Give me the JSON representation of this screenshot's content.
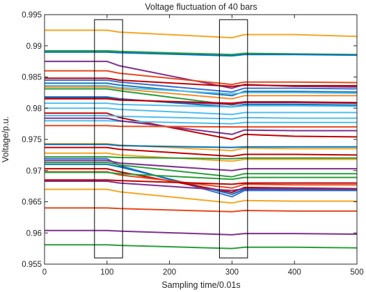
{
  "chart_data": {
    "type": "line",
    "title": "Voltage fluctuation of 40 bars",
    "xlabel": "Sampling time/0.01s",
    "ylabel": "Voltage/p.u.",
    "xlim": [
      0,
      500
    ],
    "ylim": [
      0.955,
      0.995
    ],
    "x_ticks": [
      0,
      100,
      200,
      300,
      400,
      500
    ],
    "x_tick_labels": [
      "0",
      "100",
      "200",
      "300",
      "400",
      "500"
    ],
    "y_ticks": [
      0.955,
      0.96,
      0.965,
      0.97,
      0.975,
      0.98,
      0.985,
      0.99,
      0.995
    ],
    "y_tick_labels": [
      "0.955",
      "0.96",
      "0.965",
      "0.97",
      "0.975",
      "0.98",
      "0.985",
      "0.99",
      "0.995"
    ],
    "grid": false,
    "legend": "none",
    "x": [
      0,
      100,
      120,
      300,
      320,
      400,
      500
    ],
    "series": [
      {
        "color": "#f5a623",
        "values": [
          0.9925,
          0.9925,
          0.9922,
          0.9913,
          0.9918,
          0.9918,
          0.9915
        ]
      },
      {
        "color": "#2a9d3a",
        "values": [
          0.9892,
          0.9892,
          0.9891,
          0.9886,
          0.9888,
          0.9887,
          0.9886
        ]
      },
      {
        "color": "#0072bd",
        "values": [
          0.989,
          0.989,
          0.9889,
          0.9884,
          0.9886,
          0.9886,
          0.9885
        ]
      },
      {
        "color": "#7e2f8e",
        "values": [
          0.9875,
          0.9875,
          0.9868,
          0.9832,
          0.9838,
          0.9835,
          0.9834
        ]
      },
      {
        "color": "#e8481c",
        "values": [
          0.986,
          0.986,
          0.9856,
          0.9838,
          0.9842,
          0.9842,
          0.9841
        ]
      },
      {
        "color": "#c00000",
        "values": [
          0.9848,
          0.9848,
          0.9845,
          0.9835,
          0.9837,
          0.9836,
          0.9836
        ]
      },
      {
        "color": "#3b6fd6",
        "values": [
          0.9845,
          0.9845,
          0.9842,
          0.9826,
          0.9832,
          0.9832,
          0.9831
        ]
      },
      {
        "color": "#1f77b4",
        "values": [
          0.984,
          0.984,
          0.9837,
          0.982,
          0.9827,
          0.9827,
          0.9826
        ]
      },
      {
        "color": "#4dbeee",
        "values": [
          0.9836,
          0.9836,
          0.9833,
          0.9823,
          0.9825,
          0.9825,
          0.9824
        ]
      },
      {
        "color": "#f28e2b",
        "values": [
          0.9834,
          0.9834,
          0.9831,
          0.9815,
          0.982,
          0.982,
          0.982
        ]
      },
      {
        "color": "#2a9d3a",
        "values": [
          0.9831,
          0.9831,
          0.9828,
          0.9805,
          0.981,
          0.981,
          0.9808
        ]
      },
      {
        "color": "#0072bd",
        "values": [
          0.9818,
          0.9818,
          0.9815,
          0.9802,
          0.9806,
          0.9806,
          0.9805
        ]
      },
      {
        "color": "#7e2f8e",
        "values": [
          0.9816,
          0.9816,
          0.9814,
          0.9806,
          0.9809,
          0.9809,
          0.9808
        ]
      },
      {
        "color": "#c00000",
        "values": [
          0.9815,
          0.9815,
          0.9813,
          0.9808,
          0.981,
          0.981,
          0.9809
        ]
      },
      {
        "color": "#4dbeee",
        "values": [
          0.9808,
          0.9808,
          0.9806,
          0.9802,
          0.9804,
          0.9804,
          0.9803
        ]
      },
      {
        "color": "#4dbeee",
        "values": [
          0.98,
          0.98,
          0.9798,
          0.979,
          0.9793,
          0.9793,
          0.9793
        ]
      },
      {
        "color": "#c00000",
        "values": [
          0.9792,
          0.9792,
          0.9785,
          0.975,
          0.9758,
          0.9755,
          0.9754
        ]
      },
      {
        "color": "#4dbeee",
        "values": [
          0.9788,
          0.9788,
          0.9787,
          0.9783,
          0.9785,
          0.9784,
          0.9784
        ]
      },
      {
        "color": "#4dbeee",
        "values": [
          0.978,
          0.978,
          0.9779,
          0.9775,
          0.9777,
          0.9777,
          0.9777
        ]
      },
      {
        "color": "#7e2f8e",
        "values": [
          0.9784,
          0.9784,
          0.978,
          0.9758,
          0.9765,
          0.9764,
          0.9764
        ]
      },
      {
        "color": "#e8481c",
        "values": [
          0.9772,
          0.9772,
          0.9771,
          0.977,
          0.977,
          0.977,
          0.977
        ]
      },
      {
        "color": "#f5a623",
        "values": [
          0.9743,
          0.9743,
          0.9741,
          0.9732,
          0.9736,
          0.9735,
          0.9735
        ]
      },
      {
        "color": "#0072bd",
        "values": [
          0.9742,
          0.9742,
          0.974,
          0.9737,
          0.9738,
          0.9738,
          0.9738
        ]
      },
      {
        "color": "#c00000",
        "values": [
          0.9737,
          0.9737,
          0.9734,
          0.9723,
          0.9726,
          0.9726,
          0.9725
        ]
      },
      {
        "color": "#f5a623",
        "values": [
          0.9728,
          0.9728,
          0.9725,
          0.9715,
          0.9718,
          0.9718,
          0.9718
        ]
      },
      {
        "color": "#2a9d3a",
        "values": [
          0.9722,
          0.9722,
          0.9721,
          0.9719,
          0.972,
          0.972,
          0.972
        ]
      },
      {
        "color": "#3b6fd6",
        "values": [
          0.9719,
          0.9719,
          0.9708,
          0.9658,
          0.9668,
          0.9668,
          0.9668
        ]
      },
      {
        "color": "#7e2f8e",
        "values": [
          0.9716,
          0.9716,
          0.9712,
          0.97,
          0.9703,
          0.9703,
          0.9703
        ]
      },
      {
        "color": "#2a9d3a",
        "values": [
          0.9713,
          0.9713,
          0.9709,
          0.969,
          0.9695,
          0.9695,
          0.9695
        ]
      },
      {
        "color": "#0072bd",
        "values": [
          0.971,
          0.971,
          0.9706,
          0.9662,
          0.967,
          0.967,
          0.9669
        ]
      },
      {
        "color": "#c00000",
        "values": [
          0.9703,
          0.9703,
          0.9698,
          0.9665,
          0.9673,
          0.9672,
          0.9671
        ]
      },
      {
        "color": "#e8481c",
        "values": [
          0.9698,
          0.9698,
          0.9693,
          0.9672,
          0.9678,
          0.9677,
          0.9677
        ]
      },
      {
        "color": "#2a9d3a",
        "values": [
          0.9697,
          0.9697,
          0.9695,
          0.9686,
          0.9689,
          0.9689,
          0.9689
        ]
      },
      {
        "color": "#7e2f8e",
        "values": [
          0.9683,
          0.9683,
          0.968,
          0.9668,
          0.9671,
          0.9671,
          0.967
        ]
      },
      {
        "color": "#c00000",
        "values": [
          0.9685,
          0.9685,
          0.9684,
          0.9678,
          0.968,
          0.968,
          0.968
        ]
      },
      {
        "color": "#f5a623",
        "values": [
          0.967,
          0.967,
          0.9666,
          0.9648,
          0.9652,
          0.9651,
          0.9651
        ]
      },
      {
        "color": "#e8481c",
        "values": [
          0.964,
          0.964,
          0.9639,
          0.9634,
          0.9636,
          0.9635,
          0.9635
        ]
      },
      {
        "color": "#7e2f8e",
        "values": [
          0.9604,
          0.9604,
          0.9603,
          0.9597,
          0.9599,
          0.9599,
          0.9598
        ]
      },
      {
        "color": "#2a9d3a",
        "values": [
          0.9581,
          0.9581,
          0.958,
          0.9575,
          0.9577,
          0.9577,
          0.9576
        ]
      }
    ],
    "annotation_boxes": [
      {
        "x_range": [
          80,
          125
        ],
        "y_range": [
          0.956,
          0.9942
        ]
      },
      {
        "x_range": [
          280,
          325
        ],
        "y_range": [
          0.956,
          0.9942
        ]
      }
    ]
  }
}
